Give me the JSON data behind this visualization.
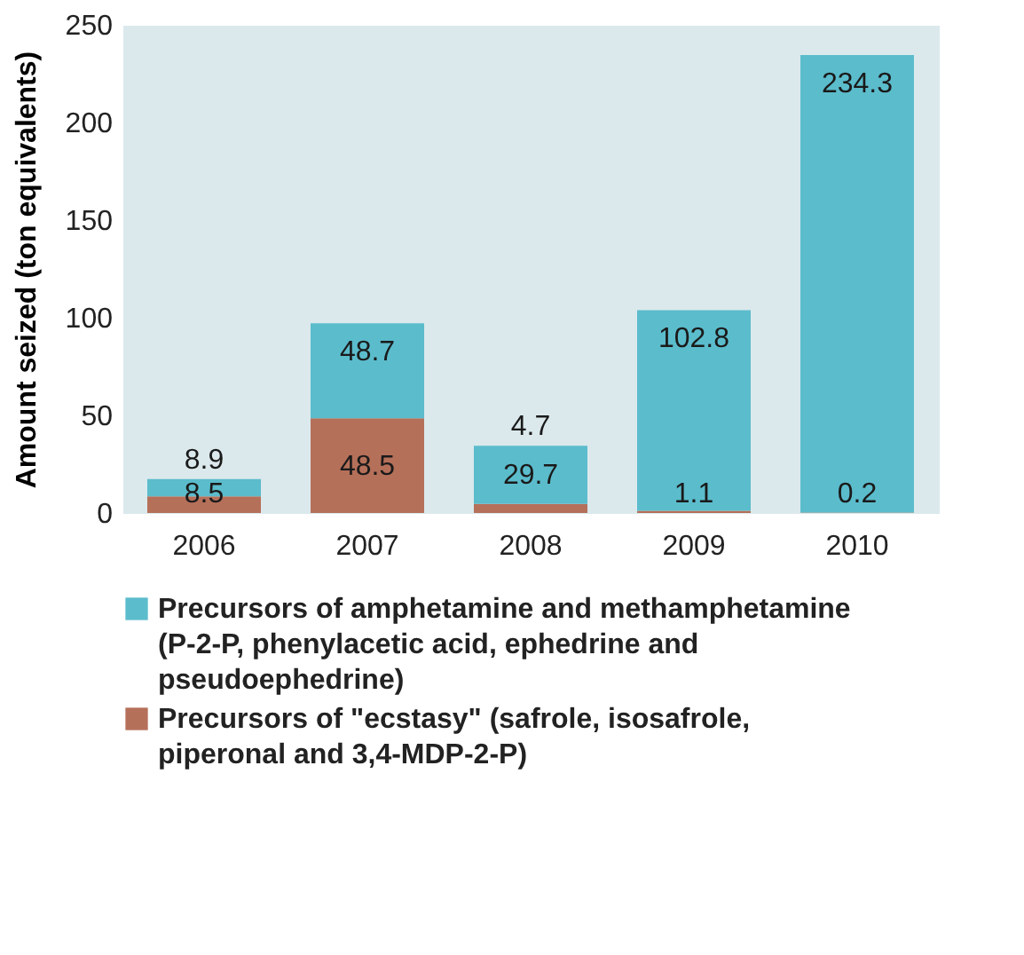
{
  "chart_data": {
    "type": "bar",
    "stacked": true,
    "ylabel": "Amount seized (ton equivalents)",
    "categories": [
      "2006",
      "2007",
      "2008",
      "2009",
      "2010"
    ],
    "series": [
      {
        "name": "Precursors of \"ecstasy\" (safrole, isosafrole, piperonal and 3,4-MDP-2-P)",
        "color": "#b5705a",
        "values": [
          8.5,
          48.5,
          4.7,
          1.1,
          0.2
        ]
      },
      {
        "name": "Precursors of amphetamine and methamphetamine (P-2-P, phenylacetic acid, ephedrine and pseudoephedrine)",
        "color": "#5bbccc",
        "values": [
          8.9,
          48.7,
          29.7,
          102.8,
          234.3
        ]
      }
    ],
    "ylim": [
      0,
      250
    ],
    "yticks": [
      0,
      50,
      100,
      150,
      200,
      250
    ],
    "grid": false,
    "data_labels": true,
    "legend": "bottom"
  }
}
